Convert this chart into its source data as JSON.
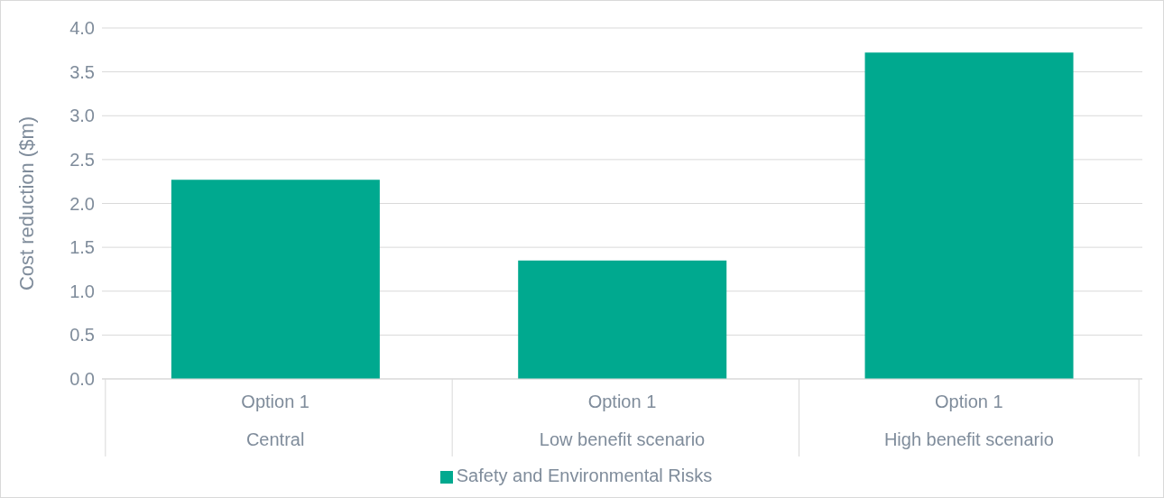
{
  "chart_data": {
    "type": "bar",
    "ylabel": "Cost reduction ($m)",
    "categories": [
      "Option 1\nCentral",
      "Option 1\nLow benefit scenario",
      "Option 1\nHigh benefit scenario"
    ],
    "series": [
      {
        "name": "Safety and Environmental Risks",
        "color": "#00a98f",
        "values": [
          2.27,
          1.35,
          3.72
        ]
      }
    ],
    "ylim": [
      0,
      4
    ],
    "yticks": [
      {
        "value": 0,
        "label": "0.0"
      },
      0.5,
      {
        "value": 1,
        "label": "1.0"
      },
      1.5,
      {
        "value": 2,
        "label": "2.0"
      },
      2.5,
      {
        "value": 3,
        "label": "3.0"
      },
      3.5,
      {
        "value": 4,
        "label": "4.0"
      }
    ],
    "grid": "y",
    "legend": "bottom"
  }
}
